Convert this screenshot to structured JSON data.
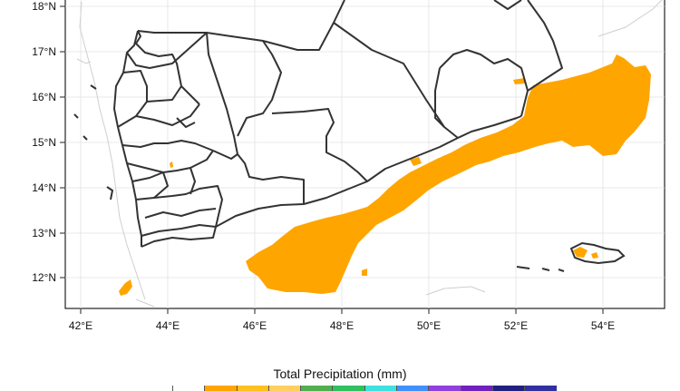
{
  "map": {
    "lat_labels": [
      "18°N",
      "17°N",
      "16°N",
      "15°N",
      "14°N",
      "13°N",
      "12°N"
    ],
    "lon_labels": [
      "42°E",
      "44°E",
      "46°E",
      "48°E",
      "50°E",
      "52°E",
      "54°E"
    ],
    "precip_color": "#FFA500",
    "border_color": "#333333",
    "coast_color": "#c8c8c8"
  },
  "legend": {
    "title": "Total Precipitation  (mm)",
    "colors": [
      "#ffffff",
      "#ffa500",
      "#ffc020",
      "#ffd060",
      "#50b050",
      "#30c060",
      "#40e0e0",
      "#4090ff",
      "#9040e0",
      "#7020c0",
      "#202080",
      "#3030a0"
    ]
  }
}
